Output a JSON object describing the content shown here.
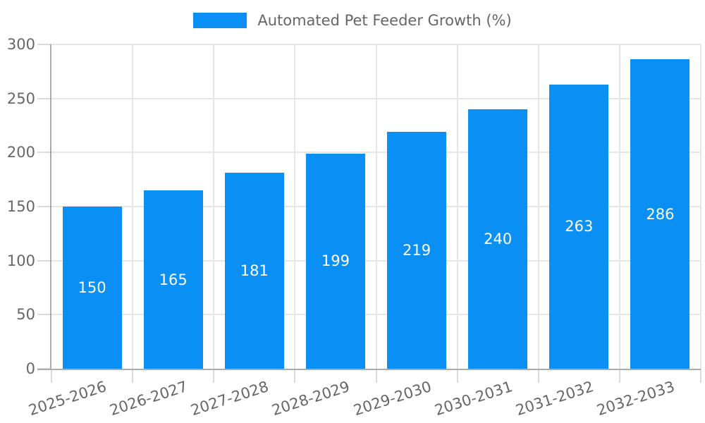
{
  "legend": {
    "series_label": "Automated Pet Feeder Growth (%)",
    "swatch_color": "#0a90f5"
  },
  "chart_data": {
    "type": "bar",
    "title": "Automated Pet Feeder Growth (%)",
    "categories": [
      "2025-2026",
      "2026-2027",
      "2027-2028",
      "2028-2029",
      "2029-2030",
      "2030-2031",
      "2031-2032",
      "2032-2033"
    ],
    "values": [
      150,
      165,
      181,
      199,
      219,
      240,
      263,
      286
    ],
    "xlabel": "",
    "ylabel": "",
    "ylim": [
      0,
      300
    ],
    "yticks": [
      0,
      50,
      100,
      150,
      200,
      250,
      300
    ],
    "grid": true,
    "legend_position": "top center",
    "bar_color": "#0a90f5",
    "value_label_color": "#ffffff",
    "axis_text_color": "#666666"
  }
}
